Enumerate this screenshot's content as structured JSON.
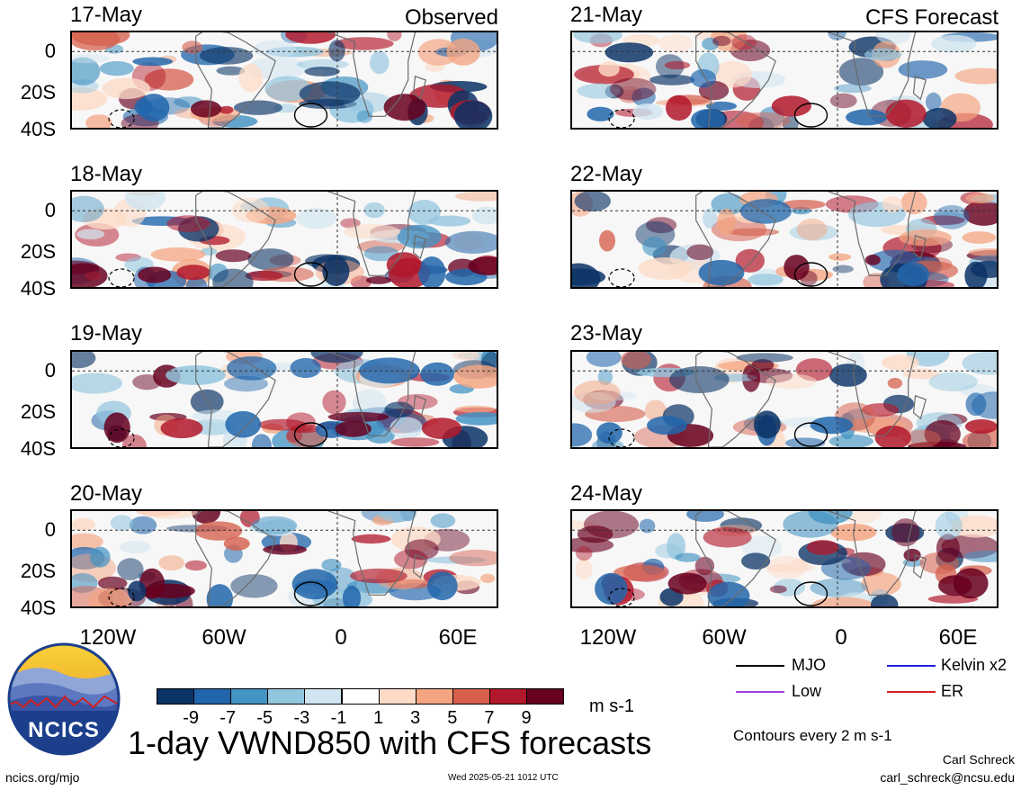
{
  "panels_left": [
    {
      "date": "17-May"
    },
    {
      "date": "18-May"
    },
    {
      "date": "19-May"
    },
    {
      "date": "20-May"
    }
  ],
  "panels_right": [
    {
      "date": "21-May"
    },
    {
      "date": "22-May"
    },
    {
      "date": "23-May"
    },
    {
      "date": "24-May"
    }
  ],
  "left_header": "Observed",
  "right_header": "CFS Forecast",
  "y_ticks": [
    "0",
    "20S",
    "40S"
  ],
  "x_ticks": [
    "120W",
    "60W",
    "0",
    "60E"
  ],
  "colorbar": {
    "colors": [
      "#0b3366",
      "#2166ac",
      "#4393c3",
      "#92c5de",
      "#d1e5f0",
      "#ffffff",
      "#fddbc7",
      "#f4a582",
      "#d6604d",
      "#b2182b",
      "#67001f"
    ],
    "labels": [
      "-9",
      "-7",
      "-5",
      "-3",
      "-1",
      "1",
      "3",
      "5",
      "7",
      "9"
    ],
    "units": "m s-1"
  },
  "legend": {
    "items": [
      {
        "label": "MJO",
        "color": "#000000"
      },
      {
        "label": "Kelvin x2",
        "color": "#1f1fd6"
      },
      {
        "label": "Low",
        "color": "#9b3fe0"
      },
      {
        "label": "ER",
        "color": "#d62020"
      }
    ],
    "contours_note": "Contours every 2 m s-1"
  },
  "logo_text": "NCICS",
  "title": "1-day VWND850 with CFS forecasts",
  "footer": {
    "url": "ncics.org/mjo",
    "timestamp": "Wed 2025-05-21 1012 UTC",
    "author": "Carl Schreck",
    "email": "carl_schreck@ncsu.edu"
  }
}
